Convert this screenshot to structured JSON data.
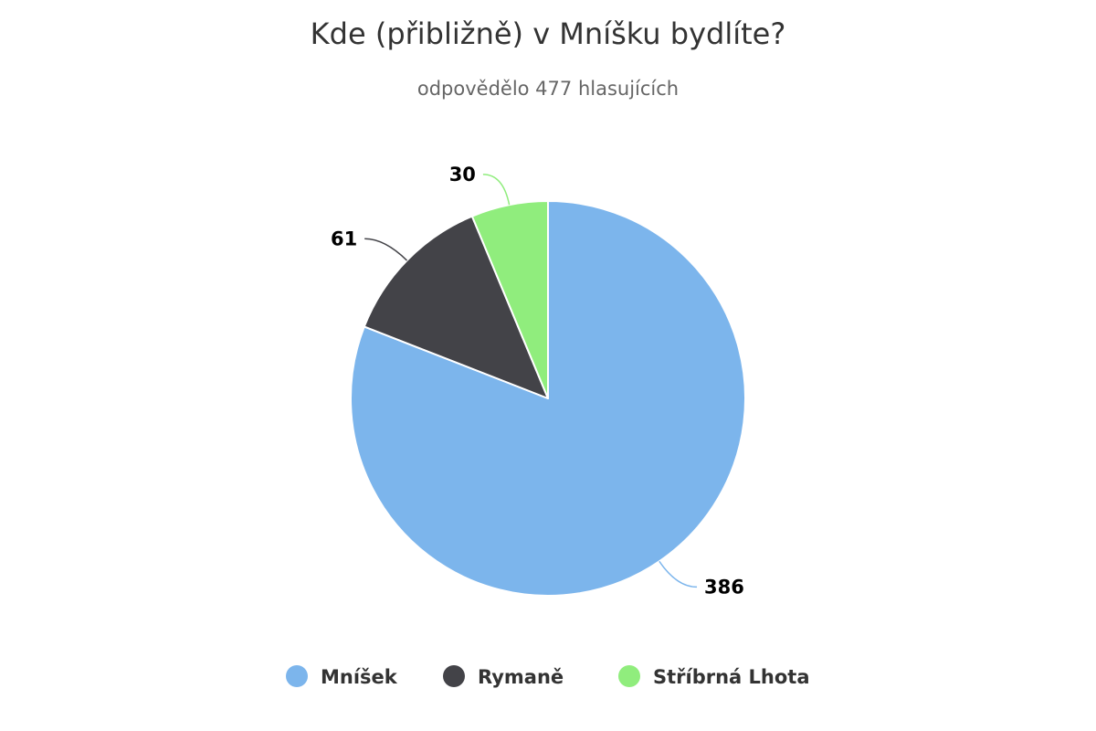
{
  "chart_data": {
    "type": "pie",
    "title": "Kde (přibližně) v Mníšku bydlíte?",
    "subtitle": "odpovědělo 477 hlasujících",
    "categories": [
      "Mníšek",
      "Rymaně",
      "Stříbrná Lhota"
    ],
    "values": [
      386,
      61,
      30
    ],
    "colors": [
      "#7cb5ec",
      "#434348",
      "#90ed7d"
    ],
    "legend_position": "bottom",
    "data_labels": true
  }
}
